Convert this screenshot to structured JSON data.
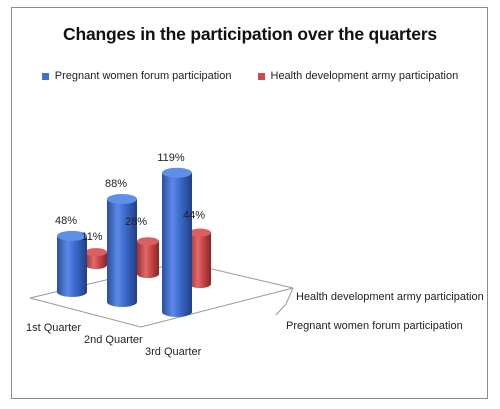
{
  "chart_data": {
    "type": "bar",
    "title": "Changes in the participation over the quarters",
    "categories": [
      "1st Quarter",
      "2nd Quarter",
      "3rd Quarter"
    ],
    "series": [
      {
        "name": "Pregnant women forum participation",
        "values": [
          48,
          88,
          119
        ],
        "labels": [
          "48%",
          "88%",
          "119%"
        ],
        "color": "#3f6fd0"
      },
      {
        "name": "Health development army participation",
        "values": [
          11,
          28,
          44
        ],
        "labels": [
          "11%",
          "28%",
          "44%"
        ],
        "color": "#cf4b4b"
      }
    ],
    "depth_labels": [
      "Health development army participation",
      "Pregnant women forum participation"
    ],
    "style": "3d-cylinder",
    "grid": false,
    "legend_position": "top"
  }
}
